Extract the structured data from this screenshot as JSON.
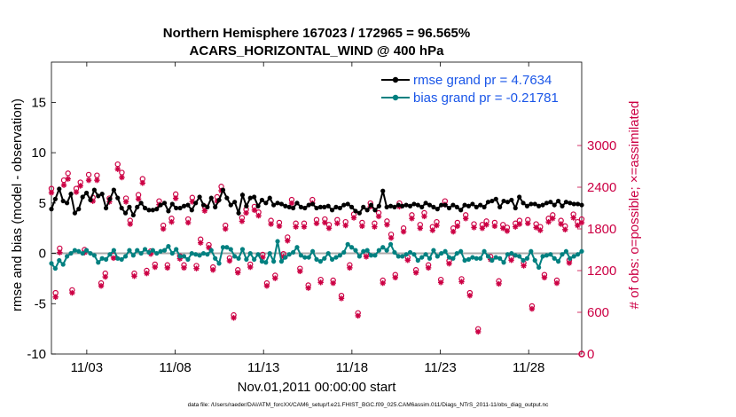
{
  "chart_data": {
    "type": "line",
    "title": [
      "Northern Hemisphere 167023 / 172965 = 96.565%",
      "ACARS_HORIZONTAL_WIND @ 400 hPa"
    ],
    "xlabel": "Nov.01,2011 00:00:00 start",
    "ylabel": "rmse and bias (model - observation)",
    "ylabel_right": "# of obs: o=possible; ×=assimilated",
    "xlim": [
      0,
      30
    ],
    "ylim": [
      -10,
      19
    ],
    "ylim_right": [
      0,
      4200
    ],
    "x_ticks": [
      2,
      7,
      12,
      17,
      22,
      27
    ],
    "x_tick_labels": [
      "11/03",
      "11/08",
      "11/13",
      "11/18",
      "11/23",
      "11/28"
    ],
    "y_ticks": [
      -10,
      -5,
      0,
      5,
      10,
      15
    ],
    "y_tick_labels": [
      "-10",
      "-5",
      "0",
      "5",
      "10",
      "15"
    ],
    "y_right_ticks": [
      0,
      600,
      1200,
      1800,
      2400,
      3000
    ],
    "y_right_tick_labels": [
      "0",
      "600",
      "1200",
      "1800",
      "2400",
      "3000"
    ],
    "legend": [
      {
        "label": "rmse grand pr = 4.7634",
        "color": "#000000"
      },
      {
        "label": "bias grand pr = -0.21781",
        "color": "#008080"
      }
    ],
    "legend_position": "top-right",
    "series": [
      {
        "name": "rmse",
        "color": "#000000",
        "values": [
          4.4,
          5.4,
          6.4,
          5.2,
          5.0,
          5.9,
          4.0,
          4.4,
          5.6,
          6.0,
          5.3,
          6.3,
          5.7,
          5.9,
          4.5,
          5.4,
          6.3,
          5.5,
          4.5,
          4.0,
          4.6,
          3.8,
          4.6,
          5.0,
          4.5,
          4.3,
          4.3,
          4.4,
          4.8,
          5.0,
          4.2,
          4.9,
          4.5,
          4.5,
          4.7,
          4.8,
          4.3,
          5.0,
          5.6,
          4.8,
          4.6,
          5.5,
          4.6,
          5.3,
          6.3,
          5.5,
          4.8,
          5.1,
          4.0,
          5.8,
          4.7,
          5.5,
          5.6,
          4.7,
          5.3,
          5.0,
          5.5,
          4.8,
          5.0,
          4.9,
          4.7,
          4.6,
          4.5,
          5.0,
          4.6,
          4.5,
          4.8,
          4.9,
          4.5,
          4.6,
          4.6,
          4.7,
          4.3,
          4.6,
          4.5,
          4.8,
          4.9,
          4.6,
          4.2,
          4.0,
          4.6,
          4.3,
          4.8,
          4.3,
          4.7,
          6.2,
          4.6,
          4.7,
          4.6,
          4.8,
          4.7,
          4.8,
          4.7,
          4.9,
          4.8,
          4.6,
          5.0,
          4.8,
          4.6,
          4.4,
          4.8,
          4.8,
          4.5,
          4.8,
          4.6,
          4.3,
          4.8,
          4.7,
          4.9,
          4.6,
          4.8,
          4.6,
          5.1,
          5.2,
          5.4,
          4.6,
          5.2,
          5.1,
          5.3,
          4.5,
          5.6,
          5.0,
          4.7,
          4.9,
          4.9,
          4.7,
          4.8,
          5.0,
          5.1,
          4.8,
          5.2,
          4.7,
          5.1,
          5.0,
          4.9,
          4.9,
          4.8
        ]
      },
      {
        "name": "bias",
        "color": "#008080",
        "values": [
          -1.0,
          -1.5,
          -0.7,
          -1.1,
          -0.3,
          0.0,
          0.3,
          0.2,
          0.0,
          0.3,
          0.0,
          -0.2,
          -0.9,
          -0.5,
          -0.6,
          -0.1,
          0.3,
          -0.5,
          -0.6,
          -0.3,
          0.3,
          -0.2,
          0.3,
          0.0,
          0.4,
          0.1,
          0.3,
          0.0,
          0.2,
          0.3,
          0.7,
          0.0,
          0.4,
          -0.3,
          -0.3,
          -0.6,
          0.0,
          -0.1,
          -0.2,
          0.0,
          -0.1,
          0.3,
          -0.5,
          -1.0,
          0.6,
          0.6,
          0.4,
          -0.3,
          -0.5,
          0.4,
          -0.6,
          0.0,
          -0.6,
          -0.1,
          -0.8,
          -0.9,
          0.0,
          -0.8,
          1.2,
          -0.8,
          -0.4,
          -0.1,
          0.1,
          0.6,
          -0.2,
          -0.4,
          -0.4,
          0.2,
          -0.6,
          -0.8,
          -0.5,
          0.0,
          -0.6,
          -0.4,
          -0.2,
          0.1,
          0.9,
          0.6,
          0.3,
          -0.3,
          0.2,
          0.3,
          -0.2,
          -0.2,
          0.3,
          0.6,
          0.3,
          0.9,
          0.1,
          -0.3,
          -0.3,
          -0.1,
          0.1,
          -0.1,
          -0.7,
          -0.4,
          -0.1,
          -0.5,
          0.3,
          -0.3,
          0.0,
          0.2,
          -0.4,
          -0.5,
          0.0,
          0.2,
          -0.7,
          -0.6,
          -0.4,
          -0.5,
          -0.5,
          0.2,
          -0.3,
          -0.7,
          -0.4,
          -0.5,
          -0.9,
          -0.1,
          0.0,
          -0.2,
          -0.3,
          -0.7,
          -0.5,
          0.2,
          -0.7,
          -1.4,
          -0.3,
          -0.2,
          -0.1,
          -0.5,
          -0.8,
          -0.1,
          0.2,
          -0.5,
          -0.3,
          -0.1,
          0.2
        ]
      },
      {
        "name": "obs possible",
        "color": "#cc0044",
        "marker": "o",
        "values": [
          2380,
          880,
          1520,
          2500,
          2600,
          920,
          2380,
          2470,
          1500,
          2580,
          2250,
          2570,
          1020,
          1160,
          2240,
          1420,
          2730,
          2610,
          2240,
          1920,
          1160,
          2290,
          2520,
          1200,
          1480,
          1290,
          2200,
          1850,
          1280,
          1950,
          2300,
          1410,
          1280,
          1940,
          2250,
          1270,
          1650,
          2120,
          1570,
          1250,
          2260,
          2410,
          1850,
          1380,
          560,
          1210,
          1960,
          2080,
          1290,
          2120,
          2040,
          1430,
          1020,
          1920,
          1130,
          1890,
          1440,
          1680,
          2220,
          1880,
          1230,
          1880,
          990,
          2220,
          1930,
          1070,
          1940,
          1860,
          1060,
          1930,
          840,
          1900,
          1280,
          2010,
          590,
          1890,
          1440,
          2170,
          1880,
          2030,
          1060,
          1910,
          1720,
          1140,
          2170,
          1810,
          1390,
          2000,
          1210,
          1860,
          2030,
          1280,
          1830,
          1900,
          1070,
          2200,
          1340,
          1810,
          1890,
          1080,
          2000,
          880,
          1870,
          360,
          1860,
          1910,
          1400,
          1890,
          1050,
          1860,
          1820,
          1390,
          1880,
          1920,
          1310,
          1930,
          690,
          1870,
          1830,
          1140,
          1950,
          2000,
          1060,
          1920,
          1840,
          1350,
          2010,
          1900,
          1940
        ]
      },
      {
        "name": "obs assimilated",
        "color": "#cc0044",
        "marker": "x",
        "values": [
          2320,
          820,
          1460,
          2430,
          2520,
          880,
          2330,
          2420,
          1460,
          2500,
          2200,
          2500,
          980,
          1110,
          2190,
          1380,
          2660,
          2540,
          2190,
          1870,
          1120,
          2230,
          2460,
          1160,
          1440,
          1250,
          2150,
          1800,
          1240,
          1900,
          2240,
          1370,
          1240,
          1890,
          2190,
          1230,
          1600,
          2060,
          1530,
          1210,
          2200,
          2350,
          1800,
          1340,
          520,
          1170,
          1910,
          2030,
          1250,
          2070,
          1990,
          1390,
          980,
          1870,
          1090,
          1840,
          1400,
          1630,
          2170,
          1830,
          1190,
          1830,
          950,
          2170,
          1880,
          1030,
          1890,
          1810,
          1020,
          1880,
          800,
          1850,
          1240,
          1960,
          550,
          1840,
          1400,
          2120,
          1830,
          1980,
          1020,
          1860,
          1670,
          1100,
          2120,
          1760,
          1350,
          1950,
          1170,
          1810,
          1980,
          1240,
          1780,
          1850,
          1030,
          2150,
          1300,
          1760,
          1840,
          1040,
          1950,
          840,
          1820,
          320,
          1810,
          1860,
          1360,
          1840,
          1010,
          1810,
          1770,
          1350,
          1830,
          1870,
          1270,
          1880,
          650,
          1820,
          1780,
          1100,
          1900,
          1950,
          1020,
          1870,
          1790,
          1310,
          1960,
          1850,
          1890
        ]
      }
    ]
  },
  "footer": "data file: /Users/raeder/DAI/ATM_forcXX/CAM6_setup/f.e21.FHIST_BGC.f09_025.CAM6assim.011/Diags_NTrS_2011-11/obs_diag_output.nc"
}
